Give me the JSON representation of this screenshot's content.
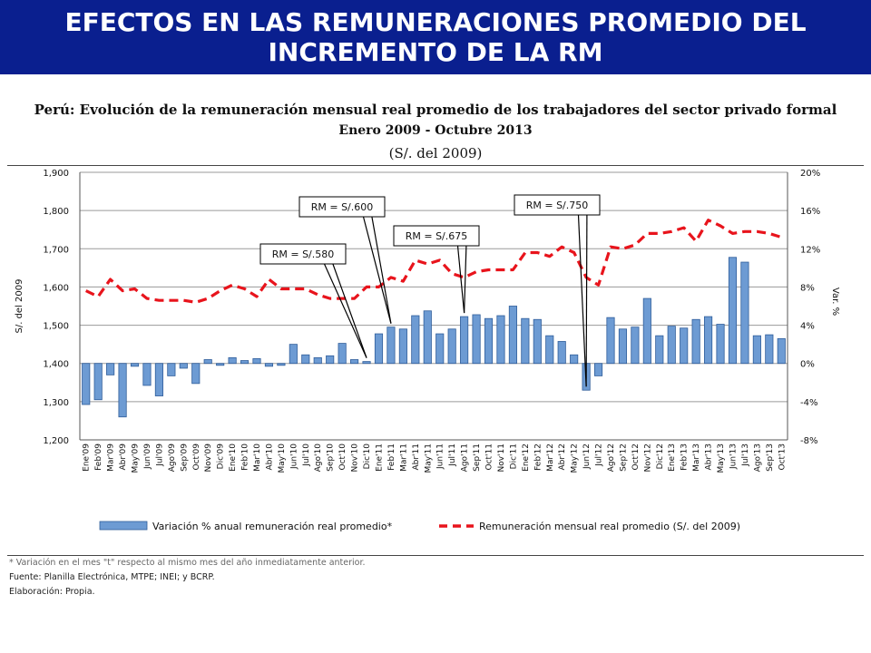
{
  "header": {
    "title_line1": "EFECTOS EN LAS REMUNERACIONES PROMEDIO DEL",
    "title_line2": "INCREMENTO DE LA RM"
  },
  "colors": {
    "banner": "#0a1f8f",
    "bars": "#6d9bd3",
    "bar_edge": "#2f5d9a",
    "line": "#e8141c"
  },
  "chart_data": {
    "type": "bar",
    "title": "Perú: Evolución de la remuneración mensual real promedio de los trabajadores del sector privado formal",
    "subtitle": "Enero 2009 - Octubre 2013",
    "units": "(S/. del 2009)",
    "ylabel_left": "S/. del 2009",
    "ylabel_right": "Var. %",
    "ylim_left": [
      1200,
      1900
    ],
    "ylim_right": [
      -8,
      20
    ],
    "yticks_left": [
      "1,200",
      "1,300",
      "1,400",
      "1,500",
      "1,600",
      "1,700",
      "1,800",
      "1,900"
    ],
    "yticks_right": [
      "-8%",
      "-4%",
      "0%",
      "4%",
      "8%",
      "12%",
      "16%",
      "20%"
    ],
    "categories": [
      "Ene'09",
      "Feb'09",
      "Mar'09",
      "Abr'09",
      "May'09",
      "Jun'09",
      "Jul'09",
      "Ago'09",
      "Sep'09",
      "Oct'09",
      "Nov'09",
      "Dic'09",
      "Ene'10",
      "Feb'10",
      "Mar'10",
      "Abr'10",
      "May'10",
      "Jun'10",
      "Jul'10",
      "Ago'10",
      "Sep'10",
      "Oct'10",
      "Nov'10",
      "Dic'10",
      "Ene'11",
      "Feb'11",
      "Mar'11",
      "Abr'11",
      "May'11",
      "Jun'11",
      "Jul'11",
      "Ago'11",
      "Sep'11",
      "Oct'11",
      "Nov'11",
      "Dic'11",
      "Ene'12",
      "Feb'12",
      "Mar'12",
      "Abr'12",
      "May'12",
      "Jun'12",
      "Jul'12",
      "Ago'12",
      "Sep'12",
      "Oct'12",
      "Nov'12",
      "Dic'12",
      "Ene'13",
      "Feb'13",
      "Mar'13",
      "Abr'13",
      "May'13",
      "Jun'13",
      "Jul'13",
      "Ago'13",
      "Sep'13",
      "Oct'13"
    ],
    "series": [
      {
        "name": "Variación % anual remuneración real promedio*",
        "type": "bar",
        "axis": "right",
        "values": [
          -4.3,
          -3.8,
          -1.2,
          -5.6,
          -0.3,
          -2.3,
          -3.4,
          -1.3,
          -0.5,
          -2.1,
          0.4,
          -0.2,
          0.6,
          0.3,
          0.5,
          -0.3,
          -0.2,
          2.0,
          0.9,
          0.6,
          0.8,
          2.1,
          0.4,
          0.2,
          3.1,
          3.8,
          3.6,
          5.0,
          5.5,
          3.1,
          3.6,
          4.9,
          5.1,
          4.7,
          5.0,
          6.0,
          4.7,
          4.6,
          2.9,
          2.3,
          0.9,
          -2.8,
          -1.3,
          4.8,
          3.6,
          3.8,
          6.8,
          2.9,
          3.9,
          3.7,
          4.6,
          4.9,
          4.1,
          11.1,
          10.6,
          2.9,
          3.0,
          2.6
        ]
      },
      {
        "name": "Remuneración mensual real promedio (S/. del 2009)",
        "type": "line",
        "axis": "left",
        "values": [
          1590,
          1575,
          1620,
          1590,
          1595,
          1570,
          1565,
          1565,
          1565,
          1560,
          1570,
          1590,
          1605,
          1595,
          1575,
          1620,
          1595,
          1595,
          1595,
          1580,
          1570,
          1570,
          1570,
          1600,
          1600,
          1625,
          1615,
          1670,
          1660,
          1670,
          1635,
          1625,
          1640,
          1645,
          1645,
          1645,
          1690,
          1690,
          1680,
          1705,
          1690,
          1625,
          1605,
          1705,
          1700,
          1710,
          1740,
          1740,
          1745,
          1755,
          1720,
          1775,
          1760,
          1740,
          1745,
          1745,
          1740,
          1730
        ]
      }
    ],
    "annotations": [
      {
        "text": "RM = S/.580",
        "category": "Dic'10"
      },
      {
        "text": "RM = S/.600",
        "category": "Feb'11"
      },
      {
        "text": "RM = S/.675",
        "category": "Ago'11"
      },
      {
        "text": "RM = S/.750",
        "category": "Jun'12"
      }
    ],
    "legend_position": "bottom"
  },
  "footer": {
    "note": "* Variación en el mes \"t\" respecto al mismo mes del año inmediatamente anterior.",
    "source": "Fuente: Planilla Electrónica, MTPE; INEI; y BCRP.",
    "author": "Elaboración: Propia."
  }
}
